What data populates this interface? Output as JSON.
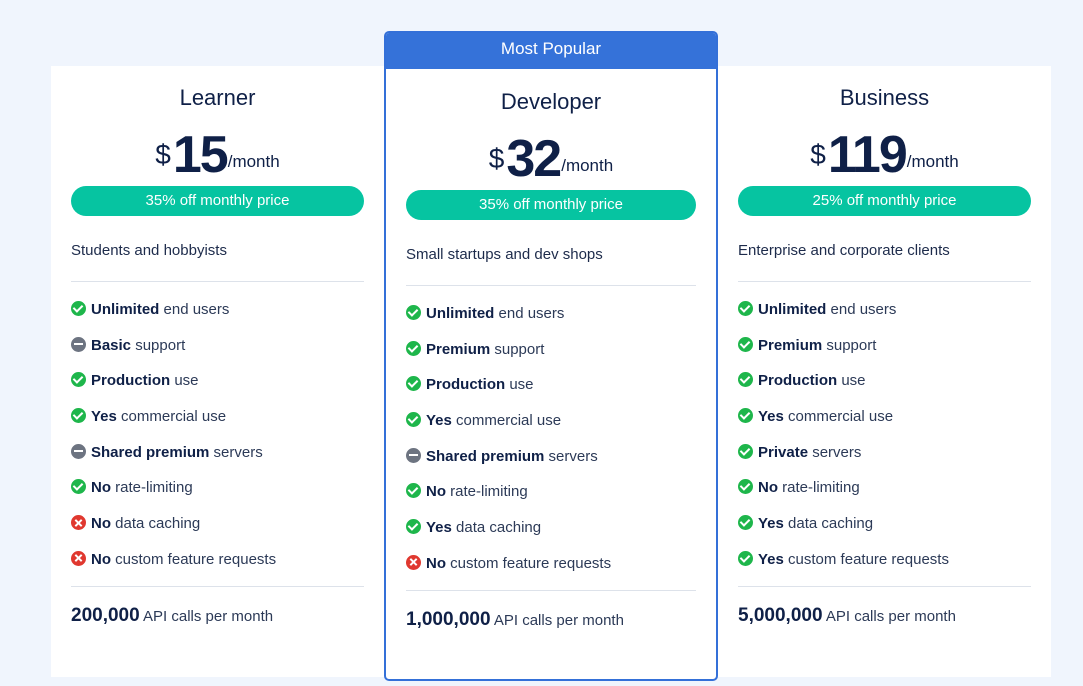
{
  "popular_label": "Most Popular",
  "colors": {
    "accent": "#3572d9",
    "discount": "#06c4a1",
    "yes": "#1eb64b",
    "partial": "#6d7481",
    "no": "#e0382f",
    "background": "#f0f5fd"
  },
  "plans": [
    {
      "name": "Learner",
      "currency": "$",
      "amount": "15",
      "period": "/month",
      "discount": "35% off monthly price",
      "audience": "Students and hobbyists",
      "features": [
        {
          "icon": "check-icon",
          "strong": "Unlimited",
          "rest": " end users"
        },
        {
          "icon": "minus-icon",
          "strong": "Basic",
          "rest": " support"
        },
        {
          "icon": "check-icon",
          "strong": "Production",
          "rest": " use"
        },
        {
          "icon": "check-icon",
          "strong": "Yes",
          "rest": " commercial use"
        },
        {
          "icon": "minus-icon",
          "strong": "Shared premium",
          "rest": " servers"
        },
        {
          "icon": "check-icon",
          "strong": "No",
          "rest": " rate-limiting"
        },
        {
          "icon": "cross-icon",
          "strong": "No",
          "rest": " data caching"
        },
        {
          "icon": "cross-icon",
          "strong": "No",
          "rest": " custom feature requests"
        }
      ],
      "api_calls": "200,000",
      "api_calls_suffix": " API calls per month"
    },
    {
      "name": "Developer",
      "currency": "$",
      "amount": "32",
      "period": "/month",
      "discount": "35% off monthly price",
      "audience": "Small startups and dev shops",
      "features": [
        {
          "icon": "check-icon",
          "strong": "Unlimited",
          "rest": " end users"
        },
        {
          "icon": "check-icon",
          "strong": "Premium",
          "rest": " support"
        },
        {
          "icon": "check-icon",
          "strong": "Production",
          "rest": " use"
        },
        {
          "icon": "check-icon",
          "strong": "Yes",
          "rest": " commercial use"
        },
        {
          "icon": "minus-icon",
          "strong": "Shared premium",
          "rest": " servers"
        },
        {
          "icon": "check-icon",
          "strong": "No",
          "rest": " rate-limiting"
        },
        {
          "icon": "check-icon",
          "strong": "Yes",
          "rest": " data caching"
        },
        {
          "icon": "cross-icon",
          "strong": "No",
          "rest": " custom feature requests"
        }
      ],
      "api_calls": "1,000,000",
      "api_calls_suffix": " API calls per month"
    },
    {
      "name": "Business",
      "currency": "$",
      "amount": "119",
      "period": "/month",
      "discount": "25% off monthly price",
      "audience": "Enterprise and corporate clients",
      "features": [
        {
          "icon": "check-icon",
          "strong": "Unlimited",
          "rest": " end users"
        },
        {
          "icon": "check-icon",
          "strong": "Premium",
          "rest": " support"
        },
        {
          "icon": "check-icon",
          "strong": "Production",
          "rest": " use"
        },
        {
          "icon": "check-icon",
          "strong": "Yes",
          "rest": " commercial use"
        },
        {
          "icon": "check-icon",
          "strong": "Private",
          "rest": " servers"
        },
        {
          "icon": "check-icon",
          "strong": "No",
          "rest": " rate-limiting"
        },
        {
          "icon": "check-icon",
          "strong": "Yes",
          "rest": " data caching"
        },
        {
          "icon": "check-icon",
          "strong": "Yes",
          "rest": " custom feature requests"
        }
      ],
      "api_calls": "5,000,000",
      "api_calls_suffix": " API calls per month"
    }
  ]
}
